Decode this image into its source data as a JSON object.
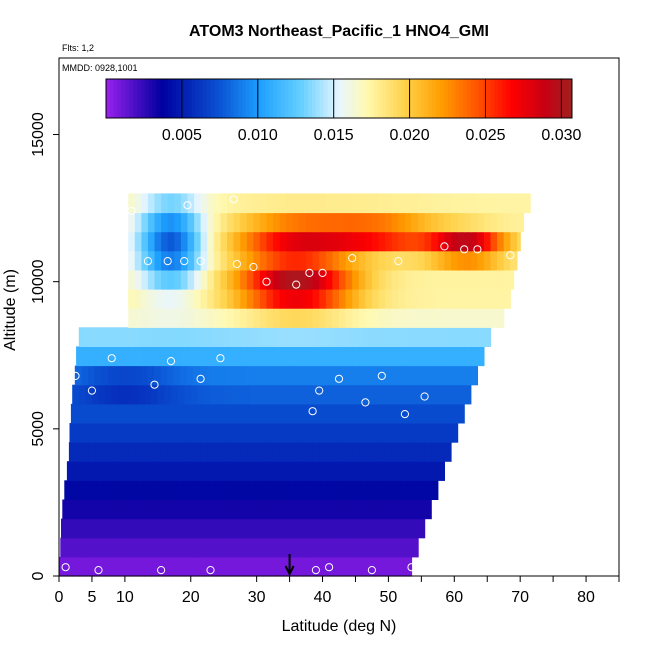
{
  "chart_data": {
    "type": "heatmap",
    "title": "ATOM3 Northeast_Pacific_1 HNO4_GMI",
    "flts_note": "Flts: 1,2",
    "mmdd_note": "MMDD: 0928,1001",
    "xlabel": "Latitude (deg N)",
    "ylabel": "Altitude (m)",
    "xlim": [
      0,
      85
    ],
    "ylim": [
      0,
      17600
    ],
    "x_ticks": [
      0,
      5,
      10,
      20,
      30,
      40,
      50,
      60,
      70,
      80
    ],
    "x_ticks_minor": [
      35,
      45,
      55,
      65,
      75,
      85
    ],
    "y_ticks": [
      0,
      5000,
      10000,
      15000
    ],
    "grid": false,
    "colorbar": {
      "min": 0.0,
      "max": 0.0307,
      "ticks": [
        0.005,
        0.01,
        0.015,
        0.02,
        0.025,
        0.03
      ],
      "tick_labels": [
        "0.005",
        "0.010",
        "0.015",
        "0.020",
        "0.025",
        "0.030"
      ],
      "colors": [
        "#9a20ee",
        "#00009e",
        "#0a50d2",
        "#1ea0ff",
        "#66d0ff",
        "#e8f6ff",
        "#fff9b0",
        "#ffd24a",
        "#ff9d00",
        "#ff5000",
        "#ff0000",
        "#c80014",
        "#a02020"
      ],
      "stops": [
        0.0,
        0.12,
        0.24,
        0.33,
        0.42,
        0.5,
        0.56,
        0.64,
        0.72,
        0.8,
        0.87,
        0.94,
        1.0
      ]
    },
    "field_extent": {
      "lat_left": [
        0,
        0.2,
        0.3,
        0.5,
        0.8,
        1.2,
        1.5,
        1.6,
        1.8,
        2.0,
        2.4,
        2.6,
        3.0,
        10.5
      ],
      "lat_right": [
        53.5,
        54.5,
        55.5,
        56.5,
        57.5,
        58.5,
        59.5,
        60.5,
        61.5,
        62.5,
        63.5,
        64.5,
        65.5,
        67.5,
        68.5,
        69.0,
        69.5,
        70.0,
        70.5,
        71.5,
        71.5,
        69.0,
        69.0,
        68.5,
        69.0,
        69.5,
        28.0
      ],
      "alt_levels": [
        0,
        650,
        1300,
        1950,
        2600,
        3250,
        3900,
        4550,
        5200,
        5850,
        6500,
        7150,
        7800,
        8450,
        9100,
        9750,
        10400,
        11050,
        11700,
        12350,
        13000
      ]
    },
    "sample_points": [
      {
        "lat": 0.0,
        "alt": 7100
      },
      {
        "lat": 2.5,
        "alt": 6800
      },
      {
        "lat": 5.0,
        "alt": 6300
      },
      {
        "lat": 1.0,
        "alt": 300
      },
      {
        "lat": 6.0,
        "alt": 200
      },
      {
        "lat": 15.5,
        "alt": 200
      },
      {
        "lat": 23.0,
        "alt": 200
      },
      {
        "lat": 39.0,
        "alt": 200
      },
      {
        "lat": 41.0,
        "alt": 300
      },
      {
        "lat": 47.5,
        "alt": 200
      },
      {
        "lat": 53.5,
        "alt": 300
      },
      {
        "lat": 8.0,
        "alt": 7400
      },
      {
        "lat": 14.5,
        "alt": 6500
      },
      {
        "lat": 17.0,
        "alt": 7300
      },
      {
        "lat": 21.5,
        "alt": 6700
      },
      {
        "lat": 24.5,
        "alt": 7400
      },
      {
        "lat": 39.5,
        "alt": 6300
      },
      {
        "lat": 38.5,
        "alt": 5600
      },
      {
        "lat": 42.5,
        "alt": 6700
      },
      {
        "lat": 46.5,
        "alt": 5900
      },
      {
        "lat": 49.0,
        "alt": 6800
      },
      {
        "lat": 52.5,
        "alt": 5500
      },
      {
        "lat": 55.5,
        "alt": 6100
      },
      {
        "lat": 70.5,
        "alt": 6200
      },
      {
        "lat": 13.5,
        "alt": 10700
      },
      {
        "lat": 16.5,
        "alt": 10700
      },
      {
        "lat": 19.0,
        "alt": 10700
      },
      {
        "lat": 21.5,
        "alt": 10700
      },
      {
        "lat": 27.0,
        "alt": 10600
      },
      {
        "lat": 29.5,
        "alt": 10500
      },
      {
        "lat": 31.5,
        "alt": 10000
      },
      {
        "lat": 36.0,
        "alt": 9900
      },
      {
        "lat": 38.0,
        "alt": 10300
      },
      {
        "lat": 40.0,
        "alt": 10300
      },
      {
        "lat": 44.5,
        "alt": 10800
      },
      {
        "lat": 51.5,
        "alt": 10700
      },
      {
        "lat": 5.5,
        "alt": 11300
      },
      {
        "lat": 8.5,
        "alt": 11300
      },
      {
        "lat": 11.0,
        "alt": 12400
      },
      {
        "lat": 19.5,
        "alt": 12600
      },
      {
        "lat": 26.5,
        "alt": 12800
      },
      {
        "lat": 58.5,
        "alt": 11200
      },
      {
        "lat": 61.5,
        "alt": 11100
      },
      {
        "lat": 63.5,
        "alt": 11100
      },
      {
        "lat": 68.5,
        "alt": 10900
      }
    ],
    "arrow_marker_lat": 35
  }
}
